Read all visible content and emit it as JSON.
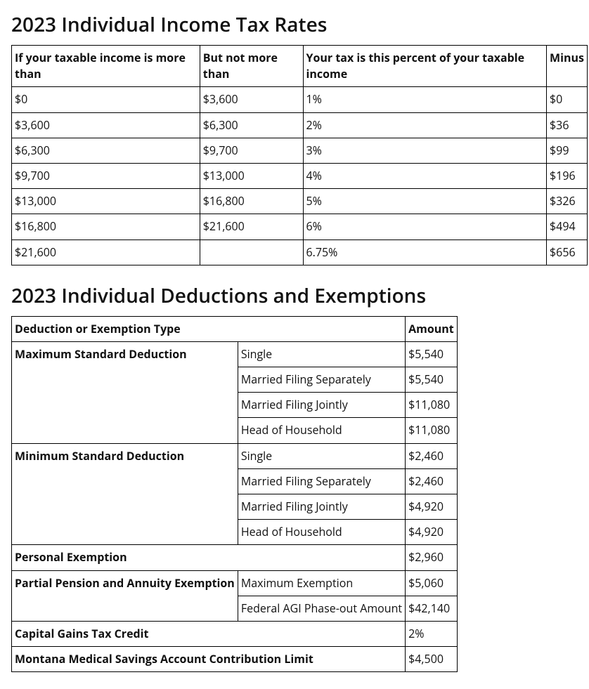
{
  "rates": {
    "title": "2023 Individual Income Tax Rates",
    "columns": [
      "If your taxable income is more than",
      "But not more than",
      "Your tax is this percent of your taxable income",
      "Minus"
    ],
    "rows": [
      {
        "more_than": "$0",
        "not_more_than": "$3,600",
        "percent": "1%",
        "minus": "$0"
      },
      {
        "more_than": "$3,600",
        "not_more_than": "$6,300",
        "percent": "2%",
        "minus": "$36"
      },
      {
        "more_than": "$6,300",
        "not_more_than": "$9,700",
        "percent": "3%",
        "minus": "$99"
      },
      {
        "more_than": "$9,700",
        "not_more_than": "$13,000",
        "percent": "4%",
        "minus": "$196"
      },
      {
        "more_than": "$13,000",
        "not_more_than": "$16,800",
        "percent": "5%",
        "minus": "$326"
      },
      {
        "more_than": "$16,800",
        "not_more_than": "$21,600",
        "percent": "6%",
        "minus": "$494"
      },
      {
        "more_than": "$21,600",
        "not_more_than": "",
        "percent": "6.75%",
        "minus": "$656"
      }
    ]
  },
  "deductions": {
    "title": "2023 Individual Deductions and Exemptions",
    "columns": [
      "Deduction or Exemption Type",
      "Amount"
    ],
    "max_std_label": "Maximum Standard Deduction",
    "max_std": [
      {
        "status": "Single",
        "amount": "$5,540"
      },
      {
        "status": "Married Filing Separately",
        "amount": "$5,540"
      },
      {
        "status": "Married Filing Jointly",
        "amount": "$11,080"
      },
      {
        "status": "Head of Household",
        "amount": "$11,080"
      }
    ],
    "min_std_label": "Minimum Standard Deduction",
    "min_std": [
      {
        "status": "Single",
        "amount": "$2,460"
      },
      {
        "status": "Married Filing Separately",
        "amount": "$2,460"
      },
      {
        "status": "Married Filing Jointly",
        "amount": "$4,920"
      },
      {
        "status": "Head of Household",
        "amount": "$4,920"
      }
    ],
    "personal_exemption_label": "Personal Exemption",
    "personal_exemption_amount": "$2,960",
    "pension_label": "Partial Pension and Annuity Exemption",
    "pension": [
      {
        "label": "Maximum Exemption",
        "amount": "$5,060"
      },
      {
        "label": "Federal AGI Phase-out Amount",
        "amount": "$42,140"
      }
    ],
    "capital_gains_label": "Capital Gains Tax Credit",
    "capital_gains_amount": "2%",
    "msa_label": "Montana Medical Savings Account Contribution Limit",
    "msa_amount": "$4,500"
  }
}
